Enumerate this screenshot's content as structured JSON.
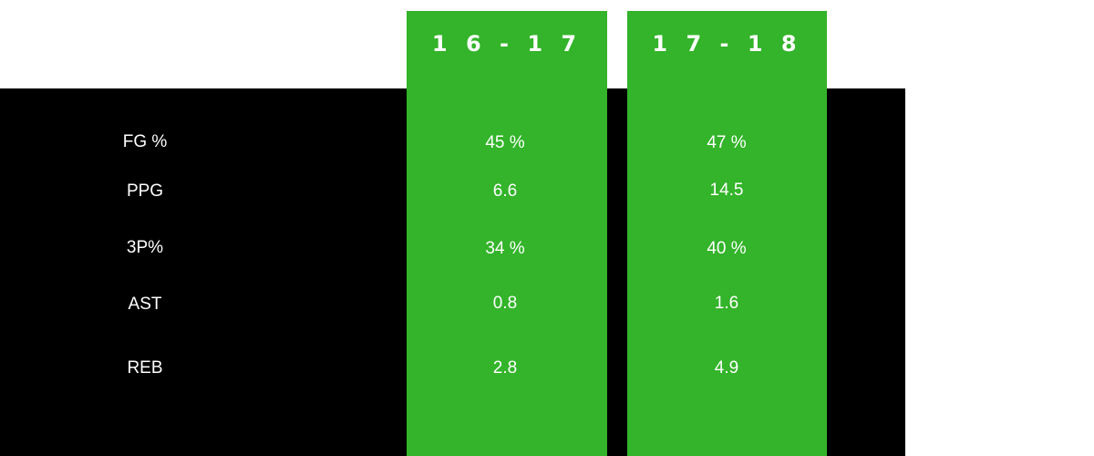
{
  "chart_data": {
    "type": "table",
    "columns": [
      "1 6 - 1 7",
      "1 7 - 1 8"
    ],
    "rows": [
      {
        "label": "FG %",
        "values": [
          "45 %",
          "47 %"
        ]
      },
      {
        "label": "PPG",
        "values": [
          "6.6",
          "14.5"
        ]
      },
      {
        "label": "3P%",
        "values": [
          "34 %",
          "40 %"
        ]
      },
      {
        "label": "AST",
        "values": [
          "0.8",
          "1.6"
        ]
      },
      {
        "label": "REB",
        "values": [
          "2.8",
          "4.9"
        ]
      }
    ]
  },
  "colors": {
    "panel": "#000000",
    "column": "#33b42a",
    "text": "#ffffff",
    "background": "#ffffff"
  }
}
